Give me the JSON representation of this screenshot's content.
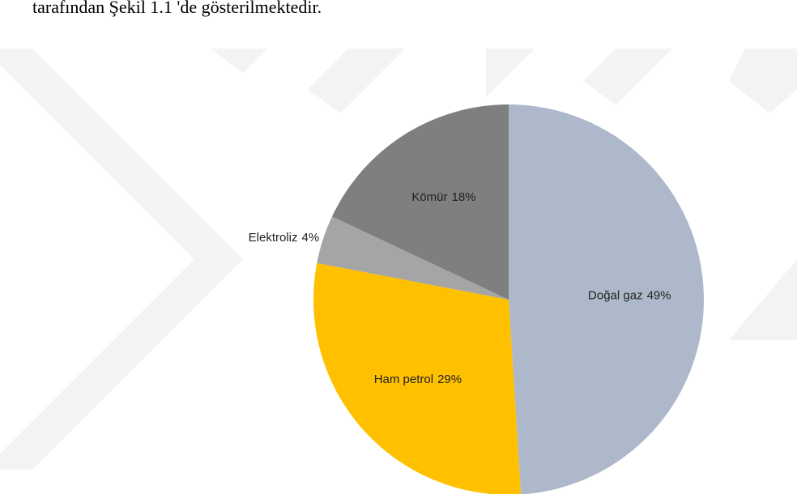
{
  "page_text": "tarafından Şekil 1.1 'de gösterilmektedir.",
  "chart_data": {
    "type": "pie",
    "categories": [
      "Doğal gaz",
      "Ham petrol",
      "Elektroliz",
      "Kömür"
    ],
    "values": [
      49,
      29,
      4,
      18
    ],
    "value_labels": [
      "49%",
      "29%",
      "4%",
      "18%"
    ],
    "colors": [
      "#adb9ca",
      "#ffc000",
      "#a5a5a5",
      "#7f7f7f"
    ]
  }
}
